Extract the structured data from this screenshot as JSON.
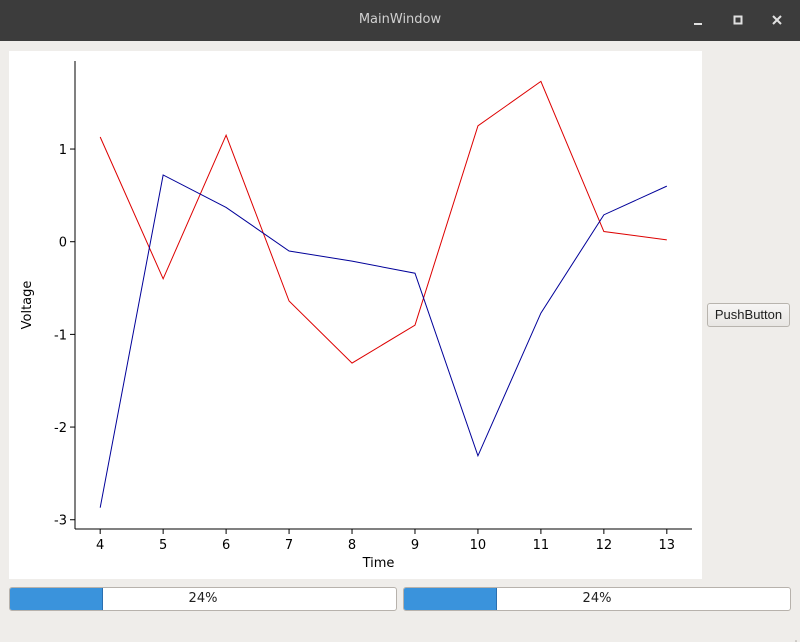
{
  "window": {
    "title": "MainWindow",
    "controls": [
      "minimize-icon",
      "maximize-icon",
      "close-icon"
    ]
  },
  "push_button": {
    "label": "PushButton"
  },
  "progress_bars": [
    {
      "value": 0.24,
      "label": "24%"
    },
    {
      "value": 0.24,
      "label": "24%"
    }
  ],
  "colors": {
    "titlebar": "#3c3c3c",
    "series_red": "#dd0000",
    "series_blue": "#000099",
    "progress_fill": "#3a93dc"
  },
  "chart_data": {
    "type": "line",
    "title": "",
    "xlabel": "Time",
    "ylabel": "Voltage",
    "x": [
      4,
      5,
      6,
      7,
      8,
      9,
      10,
      11,
      12,
      13
    ],
    "xticks": [
      "4",
      "5",
      "6",
      "7",
      "8",
      "9",
      "10",
      "11",
      "12",
      "13"
    ],
    "yticks": [
      "-3",
      "-2",
      "-1",
      "0",
      "1"
    ],
    "xlim": [
      3.6,
      13.4
    ],
    "ylim": [
      -3.1,
      1.95
    ],
    "grid": false,
    "series": [
      {
        "color": "#dd0000",
        "values": [
          1.13,
          -0.4,
          1.15,
          -0.64,
          -1.31,
          -0.9,
          1.25,
          1.73,
          0.11,
          0.02
        ]
      },
      {
        "color": "#000099",
        "values": [
          -2.87,
          0.72,
          0.37,
          -0.1,
          -0.21,
          -0.34,
          -2.31,
          -0.77,
          0.29,
          0.6
        ]
      }
    ]
  }
}
